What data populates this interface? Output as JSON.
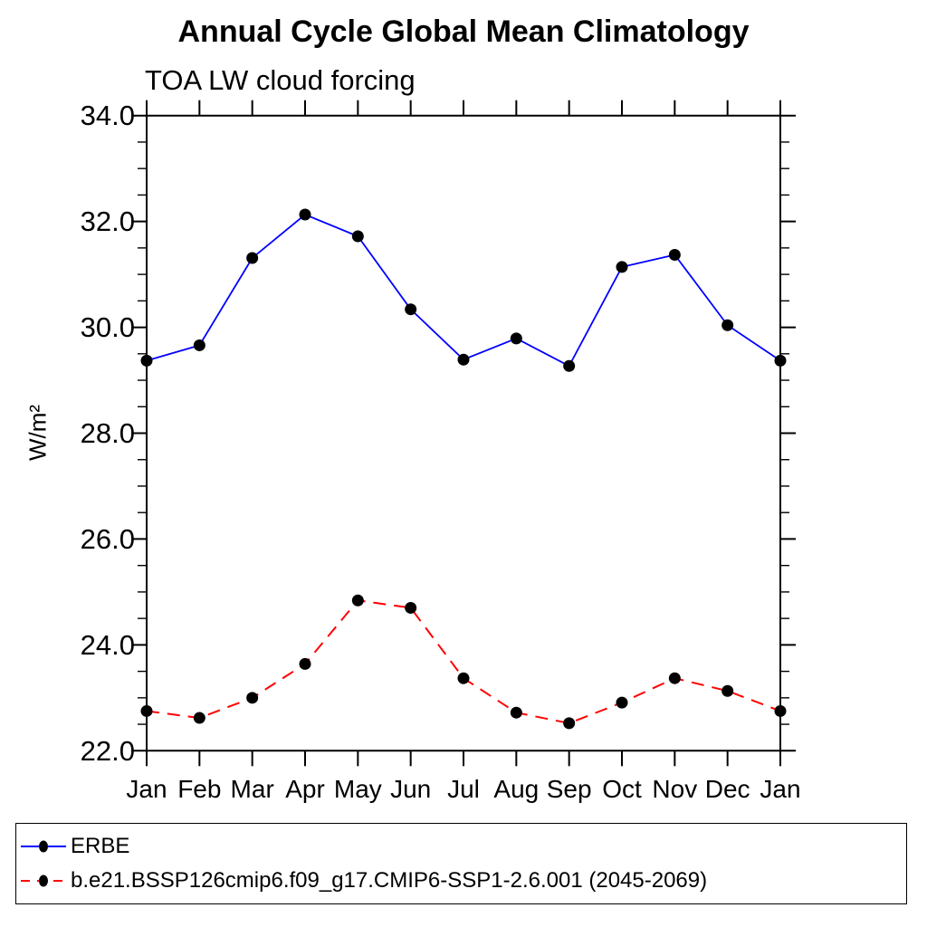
{
  "chart_data": {
    "type": "line",
    "title": "Annual Cycle Global Mean Climatology",
    "subtitle": "TOA LW cloud forcing",
    "xlabel": "",
    "ylabel": "W/m²",
    "ylim": [
      22.0,
      34.0
    ],
    "y_major_tick_step": 2.0,
    "y_minor_tick_step": 0.5,
    "y_tick_labels": [
      "22.0",
      "24.0",
      "26.0",
      "28.0",
      "30.0",
      "32.0",
      "34.0"
    ],
    "categories": [
      "Jan",
      "Feb",
      "Mar",
      "Apr",
      "May",
      "Jun",
      "Jul",
      "Aug",
      "Sep",
      "Oct",
      "Nov",
      "Dec",
      "Jan"
    ],
    "grid": false,
    "legend_position": "bottom-box",
    "series": [
      {
        "name": "ERBE",
        "line_color": "#0000ff",
        "line_style": "solid",
        "marker": "filled-circle",
        "marker_color": "#000000",
        "values": [
          29.37,
          29.66,
          31.31,
          32.13,
          31.72,
          30.34,
          29.39,
          29.79,
          29.27,
          31.14,
          31.37,
          30.04,
          29.37
        ]
      },
      {
        "name": "b.e21.BSSP126cmip6.f09_g17.CMIP6-SSP1-2.6.001 (2045-2069)",
        "line_color": "#ff0000",
        "line_style": "dashed",
        "marker": "filled-circle",
        "marker_color": "#000000",
        "values": [
          22.75,
          22.62,
          23.0,
          23.64,
          24.84,
          24.7,
          23.37,
          22.72,
          22.52,
          22.91,
          23.37,
          23.13,
          22.75
        ]
      }
    ]
  }
}
